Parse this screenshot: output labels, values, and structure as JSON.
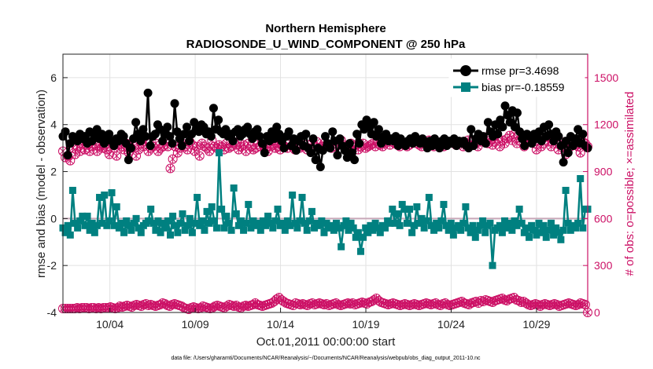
{
  "chart_data": {
    "type": "line",
    "title": "Northern Hemisphere",
    "subtitle": "RADIOSONDE_U_WIND_COMPONENT @ 250 hPa",
    "xlabel": "Oct.01,2011 00:00:00 start",
    "ylabel_left": "rmse and bias (model - observation)",
    "ylabel_right": "# of obs: o=possible; ×=assimilated",
    "ylim_left": [
      -4,
      7
    ],
    "yticks_left": [
      "6",
      "4",
      "2",
      "0",
      "-2",
      "-4"
    ],
    "ylim_right": [
      0,
      1650
    ],
    "yticks_right": [
      "1500",
      "1200",
      "900",
      "600",
      "300",
      "0"
    ],
    "xlim_days": [
      0.25,
      31
    ],
    "xticks": [
      "10/04",
      "10/09",
      "10/14",
      "10/19",
      "10/24",
      "10/29"
    ],
    "grid": true,
    "legend_position": "top-right",
    "footer": "data file: /Users/gharamti/Documents/NCAR/Reanalysis/~/Documents/NCAR/Reanalysis/webpub/obs_diag_output_2011-10.nc",
    "series": [
      {
        "name": "rmse pr=3.4698",
        "axis": "left",
        "color": "#000000",
        "marker": "circle",
        "values": [
          3.5,
          3.7,
          2.7,
          3.2,
          3.5,
          3.4,
          3.3,
          3.6,
          3.4,
          3.5,
          3.2,
          3.7,
          3.3,
          3.5,
          3.8,
          3.4,
          3.6,
          3.2,
          3.4,
          3.6,
          3.3,
          3.1,
          3.4,
          3.3,
          3.6,
          3.5,
          3.2,
          2.5,
          3.0,
          3.4,
          4.1,
          3.6,
          3.3,
          3.8,
          3.5,
          5.35,
          3.1,
          3.5,
          3.6,
          4.0,
          3.8,
          3.3,
          3.6,
          3.9,
          3.5,
          3.2,
          4.9,
          3.7,
          3.4,
          3.1,
          3.6,
          3.9,
          3.3,
          3.6,
          4.1,
          3.8,
          3.7,
          4.0,
          3.9,
          3.6,
          3.7,
          3.5,
          4.7,
          3.8,
          4.2,
          3.7,
          3.6,
          3.8,
          3.5,
          3.6,
          3.3,
          3.7,
          3.8,
          3.5,
          3.6,
          3.8,
          3.9,
          3.6,
          3.4,
          3.7,
          3.8,
          3.5,
          3.2,
          2.8,
          3.5,
          3.3,
          3.7,
          3.4,
          3.9,
          3.6,
          3.3,
          3.0,
          3.5,
          3.7,
          3.1,
          3.4,
          2.9,
          3.3,
          3.5,
          3.1,
          3.6,
          3.0,
          2.8,
          3.4,
          2.5,
          3.0,
          2.2,
          2.9,
          3.5,
          3.2,
          3.0,
          3.7,
          3.3,
          2.7,
          3.4,
          3.1,
          2.9,
          2.6,
          3.2,
          2.8,
          2.5,
          3.6,
          3.2,
          4.0,
          3.8,
          4.2,
          3.9,
          3.6,
          4.1,
          3.5,
          3.8,
          3.2,
          3.5,
          3.6,
          3.3,
          3.4,
          3.3,
          3.5,
          3.1,
          3.4,
          3.2,
          3.1,
          3.3,
          3.4,
          3.2,
          3.5,
          3.3,
          3.2,
          3.4,
          3.2,
          3.0,
          3.3,
          3.1,
          3.4,
          3.2,
          3.0,
          3.3,
          3.4,
          3.1,
          3.3,
          3.2,
          3.4,
          3.1,
          3.3,
          3.2,
          3.3,
          3.1,
          3.0,
          3.8,
          3.1,
          3.4,
          3.6,
          3.3,
          3.5,
          3.2,
          4.1,
          3.7,
          3.5,
          4.0,
          3.6,
          4.2,
          3.9,
          4.8,
          4.4,
          4.1,
          4.6,
          3.9,
          4.5,
          3.7,
          3.4,
          3.1,
          3.6,
          3.5,
          3.2,
          3.6,
          3.4,
          3.7,
          3.3,
          3.9,
          3.5,
          4.0,
          3.6,
          3.3,
          3.7,
          3.5,
          3.1,
          2.4,
          3.3,
          2.8,
          3.5,
          3.1,
          3.4,
          3.8,
          3.2,
          3.6,
          3.1,
          3.0
        ]
      },
      {
        "name": "bias pr=-0.18559",
        "axis": "left",
        "color": "#008080",
        "marker": "square",
        "values": [
          -0.4,
          -0.6,
          -0.3,
          -0.7,
          1.2,
          -0.2,
          -0.4,
          -0.1,
          0.1,
          -0.3,
          0.1,
          -0.5,
          -0.2,
          -0.6,
          -0.3,
          0.9,
          -0.2,
          1.0,
          -0.3,
          -0.1,
          1.1,
          -0.3,
          0.5,
          -0.4,
          -0.2,
          -0.6,
          -0.1,
          -0.3,
          -0.5,
          -0.2,
          0.0,
          -0.4,
          -0.6,
          -0.3,
          -0.2,
          -0.1,
          0.4,
          -0.2,
          -0.5,
          -0.1,
          -0.6,
          -0.2,
          -0.4,
          -0.1,
          -0.7,
          0.1,
          -0.3,
          -0.6,
          -0.2,
          0.2,
          -0.5,
          -0.3,
          0.0,
          -0.6,
          -0.2,
          0.9,
          -0.3,
          -0.1,
          -0.5,
          0.3,
          -0.2,
          0.5,
          -0.1,
          -0.4,
          2.8,
          0.4,
          -0.4,
          0.1,
          -0.2,
          -0.5,
          1.3,
          0.2,
          -0.3,
          -0.1,
          -0.5,
          -0.2,
          0.6,
          -0.4,
          -0.1,
          -0.3,
          -0.2,
          -0.5,
          -0.1,
          -0.3,
          0.1,
          -0.2,
          -0.4,
          -0.1,
          0.4,
          -0.3,
          -0.2,
          -0.5,
          -0.1,
          -0.3,
          1.0,
          -0.2,
          -0.4,
          -0.1,
          0.9,
          -0.2,
          -0.5,
          -0.1,
          0.3,
          -0.4,
          -0.2,
          -0.3,
          -0.1,
          -0.6,
          -0.2,
          -0.4,
          -0.3,
          -0.5,
          -0.2,
          -0.4,
          -1.2,
          -0.3,
          -0.1,
          -0.5,
          -0.2,
          -0.4,
          -0.8,
          -0.6,
          -1.4,
          -0.8,
          -0.4,
          -0.6,
          -0.3,
          -0.5,
          -0.2,
          -0.4,
          -0.6,
          -0.3,
          -0.4,
          -0.1,
          -0.2,
          0.4,
          -0.2,
          0.2,
          -0.3,
          0.6,
          0.4,
          -0.2,
          0.4,
          -0.6,
          -0.3,
          0.5,
          -0.2,
          0.0,
          -0.4,
          -0.1,
          0.9,
          -0.3,
          -0.5,
          -0.2,
          -0.4,
          -0.1,
          0.6,
          -0.3,
          -0.5,
          -0.2,
          -0.7,
          -0.4,
          -0.3,
          -0.5,
          -0.2,
          0.5,
          -0.4,
          -0.6,
          -0.3,
          -0.8,
          -0.5,
          -0.3,
          -0.1,
          -0.6,
          -0.3,
          -0.2,
          -2.0,
          -0.5,
          -0.4,
          -0.3,
          -0.6,
          -0.1,
          -0.4,
          -0.2,
          -0.5,
          -0.1,
          -0.3,
          0.4,
          -0.2,
          -0.6,
          -0.4,
          -0.8,
          -0.3,
          -0.5,
          -0.7,
          -0.2,
          -0.6,
          -0.3,
          -0.8,
          -0.5,
          -0.2,
          -0.7,
          -0.4,
          -0.6,
          -0.9,
          -0.5,
          1.2,
          -0.2,
          -0.5,
          -0.3,
          -0.4,
          -0.2,
          1.7,
          -0.4,
          0.4,
          0.4
        ]
      },
      {
        "name": "obs possible",
        "axis": "right",
        "color": "#cc1166",
        "marker": "circle",
        "values": [
          1030,
          990,
          1000,
          970,
          1050,
          1010,
          1060,
          1030,
          1080,
          1040,
          1070,
          1030,
          1060,
          1080,
          1030,
          1060,
          1050,
          1070,
          1040,
          1010,
          1090,
          1050,
          1000,
          1070,
          1060,
          1040,
          1080,
          1020,
          1050,
          1060,
          1000,
          1040,
          1080,
          1060,
          1090,
          1030,
          1050,
          1060,
          1080,
          1030,
          1050,
          1060,
          1090,
          1060,
          920,
          980,
          1060,
          1020,
          1050,
          1080,
          1060,
          1040,
          1090,
          1070,
          1030,
          1060,
          1000,
          1080,
          1060,
          1050,
          1030,
          1100,
          1060,
          1050,
          1070,
          1060,
          1040,
          1080,
          1050,
          1060,
          1090,
          1070,
          1040,
          1060,
          1070,
          1030,
          1080,
          1060,
          1040,
          1050,
          1090,
          1060,
          1070,
          1040,
          1030,
          1060,
          1080,
          1050,
          1060,
          1040,
          1070,
          1060,
          1050,
          1090,
          1060,
          1040,
          1080,
          1050,
          1060,
          1070,
          1040,
          1050,
          1080,
          1060,
          1090,
          1050,
          1060,
          1080,
          1070,
          1060,
          1050,
          1080,
          1060,
          1090,
          1100,
          1070,
          1060,
          1050,
          1080,
          1060,
          1070,
          1040,
          1060,
          1080,
          1050,
          1060,
          1070,
          1080,
          1060,
          1090,
          1070,
          1060,
          1080,
          1100,
          1070,
          1090,
          1080,
          1070,
          1060,
          1090,
          1080,
          1060,
          1070,
          1100,
          1090,
          1080,
          1070,
          1060,
          1080,
          1090,
          1100,
          1080,
          1060,
          1070,
          1080,
          1090,
          1060,
          1070,
          1080,
          1090,
          1100,
          1070,
          1080,
          1090,
          1060,
          1080,
          1100,
          1090,
          1070,
          1080,
          1060,
          1090,
          1100,
          1120,
          1080,
          1100,
          1070,
          1090,
          1110,
          1060,
          1100,
          1080,
          1110,
          1130,
          1100,
          1140,
          1080,
          1100,
          1120,
          1060,
          1110,
          1090,
          1100,
          1080,
          1040,
          1100,
          1060,
          1080,
          1120,
          1090,
          1060,
          1100,
          1080,
          1040,
          1090,
          1060,
          1010,
          1080,
          1060,
          1090,
          1070,
          1060,
          1020,
          1090,
          1080,
          1060
        ]
      },
      {
        "name": "obs assimilated",
        "axis": "right",
        "color": "#cc1166",
        "marker": "x",
        "values": [
          25,
          25,
          25,
          25,
          25,
          25,
          30,
          25,
          30,
          30,
          30,
          25,
          30,
          30,
          25,
          30,
          25,
          30,
          30,
          30,
          35,
          30,
          25,
          30,
          40,
          35,
          40,
          45,
          40,
          35,
          45,
          50,
          45,
          40,
          50,
          55,
          45,
          50,
          45,
          40,
          45,
          50,
          60,
          55,
          45,
          40,
          50,
          55,
          50,
          45,
          40,
          30,
          25,
          20,
          30,
          35,
          30,
          25,
          30,
          40,
          35,
          30,
          25,
          30,
          40,
          45,
          40,
          35,
          30,
          40,
          50,
          45,
          40,
          45,
          35,
          30,
          40,
          45,
          40,
          45,
          50,
          60,
          50,
          45,
          40,
          45,
          50,
          55,
          60,
          70,
          85,
          95,
          80,
          70,
          60,
          55,
          50,
          45,
          60,
          55,
          50,
          55,
          50,
          45,
          55,
          60,
          50,
          55,
          60,
          55,
          50,
          55,
          45,
          50,
          55,
          60,
          50,
          45,
          50,
          55,
          60,
          55,
          60,
          50,
          55,
          60,
          65,
          60,
          55,
          65,
          70,
          80,
          90,
          75,
          65,
          60,
          55,
          50,
          55,
          60,
          55,
          50,
          45,
          50,
          55,
          50,
          45,
          50,
          55,
          50,
          45,
          50,
          55,
          60,
          55,
          50,
          55,
          60,
          50,
          45,
          55,
          60,
          50,
          45,
          50,
          55,
          60,
          65,
          70,
          60,
          55,
          50,
          60,
          65,
          70,
          60,
          75,
          70,
          80,
          75,
          70,
          65,
          75,
          80,
          85,
          90,
          80,
          75,
          85,
          90,
          95,
          80,
          75,
          65,
          70,
          60,
          50,
          45,
          50,
          55,
          50,
          40,
          50,
          55,
          50,
          45,
          50,
          55,
          50,
          40,
          45,
          50,
          55,
          60,
          55,
          50,
          45,
          50,
          60,
          55,
          50,
          0
        ]
      }
    ]
  }
}
